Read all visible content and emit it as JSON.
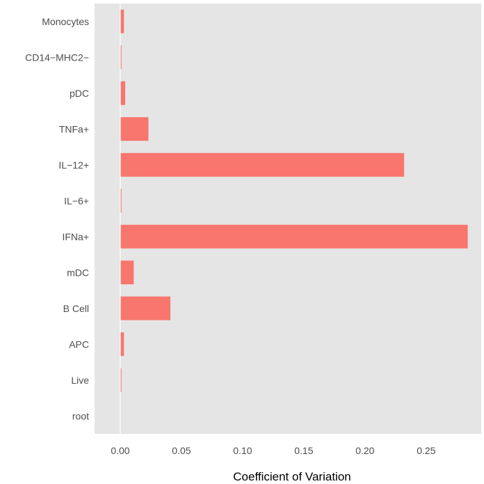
{
  "chart_data": {
    "type": "bar",
    "orientation": "horizontal",
    "categories": [
      "Monocytes",
      "CD14−MHC2−",
      "pDC",
      "TNFa+",
      "IL−12+",
      "IL−6+",
      "IFNa+",
      "mDC",
      "B Cell",
      "APC",
      "Live",
      "root"
    ],
    "values": [
      0.003,
      0.001,
      0.004,
      0.023,
      0.232,
      0.001,
      0.284,
      0.011,
      0.041,
      0.003,
      0.001,
      0.0
    ],
    "xlabel": "Coefficient of Variation",
    "ylabel": "",
    "title": "",
    "xlim": [
      -0.021,
      0.295
    ],
    "x_ticks": [
      0.0,
      0.05,
      0.1,
      0.15,
      0.2,
      0.25
    ],
    "x_tick_labels": [
      "0.00",
      "0.05",
      "0.10",
      "0.15",
      "0.20",
      "0.25"
    ],
    "grid": false,
    "legend": "none",
    "colors": {
      "bar": "#f8766d",
      "panel": "#e5e5e5",
      "zero_line": "#ffffff"
    }
  }
}
